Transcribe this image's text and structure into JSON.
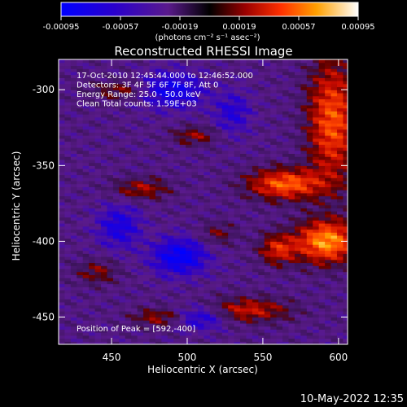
{
  "chart_data": {
    "type": "heatmap",
    "title": "Reconstructed RHESSI Image",
    "xlabel": "Heliocentric X (arcsec)",
    "ylabel": "Heliocentric Y (arcsec)",
    "xlim": [
      415,
      606
    ],
    "ylim": [
      -468,
      -280
    ],
    "xticks": [
      450,
      500,
      550,
      600
    ],
    "yticks": [
      -300,
      -350,
      -400,
      -450
    ],
    "colorbar": {
      "range": [
        -0.00095,
        0.00095
      ],
      "ticks": [
        "-0.00095",
        "-0.00057",
        "-0.00019",
        "0.00019",
        "0.00057",
        "0.00095"
      ],
      "unit_label": "(photons cm⁻² s⁻¹ asec⁻²)"
    },
    "info_lines": [
      "17-Oct-2010 12:45:44.000 to 12:46:52.000",
      "Detectors: 3F 4F 5F 6F 7F 8F, Att 0",
      "Energy Range: 25.0 - 50.0 keV",
      "Clean     Total counts: 1.59E+03"
    ],
    "peak_label": "Position of Peak = [592,-400]",
    "peak": {
      "x": 592,
      "y": -400
    },
    "sources": [
      {
        "x": 592,
        "y": -400,
        "amp": 1.0,
        "sx": 20,
        "sy": 14
      },
      {
        "x": 565,
        "y": -362,
        "amp": 0.85,
        "sx": 24,
        "sy": 10
      },
      {
        "x": 596,
        "y": -320,
        "amp": 0.8,
        "sx": 16,
        "sy": 40
      },
      {
        "x": 560,
        "y": -405,
        "amp": 0.6,
        "sx": 12,
        "sy": 10
      },
      {
        "x": 540,
        "y": -445,
        "amp": 0.55,
        "sx": 28,
        "sy": 8
      },
      {
        "x": 470,
        "y": -365,
        "amp": 0.45,
        "sx": 18,
        "sy": 7
      },
      {
        "x": 505,
        "y": -330,
        "amp": 0.4,
        "sx": 14,
        "sy": 6
      },
      {
        "x": 440,
        "y": -420,
        "amp": 0.35,
        "sx": 14,
        "sy": 8
      },
      {
        "x": 480,
        "y": -450,
        "amp": 0.4,
        "sx": 16,
        "sy": 6
      },
      {
        "x": 455,
        "y": -300,
        "amp": 0.35,
        "sx": 18,
        "sy": 6
      },
      {
        "x": 520,
        "y": -395,
        "amp": 0.3,
        "sx": 12,
        "sy": 8
      },
      {
        "x": 490,
        "y": -300,
        "amp": -0.6,
        "sx": 20,
        "sy": 12
      },
      {
        "x": 495,
        "y": -410,
        "amp": -0.7,
        "sx": 18,
        "sy": 12
      },
      {
        "x": 455,
        "y": -390,
        "amp": -0.5,
        "sx": 14,
        "sy": 14
      },
      {
        "x": 510,
        "y": -450,
        "amp": -0.5,
        "sx": 16,
        "sy": 8
      },
      {
        "x": 530,
        "y": -315,
        "amp": -0.4,
        "sx": 12,
        "sy": 14
      }
    ],
    "timestamp": "10-May-2022 12:35"
  }
}
